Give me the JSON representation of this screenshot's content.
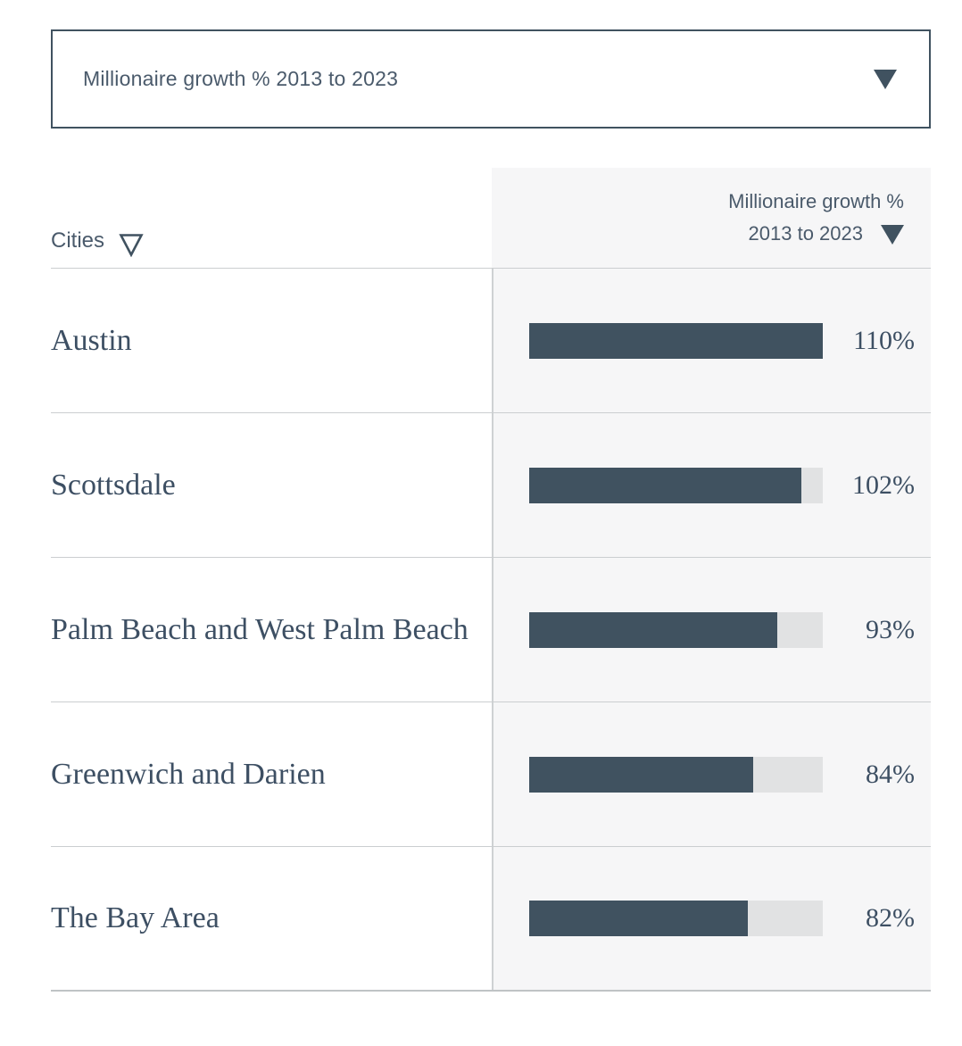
{
  "colors": {
    "bar_fill": "#405260",
    "bar_track": "#E1E2E3",
    "column_background": "#F6F6F7",
    "dropdown_border": "#405260",
    "serif_text": "#3D4F63",
    "sans_text": "#4A5A6B"
  },
  "dropdown": {
    "value": "Millionaire growth % 2013 to 2023",
    "icon": "triangle-down-filled"
  },
  "table": {
    "columns": [
      {
        "label": "Cities",
        "sort_icon": "triangle-down-outline"
      },
      {
        "label_line1": "Millionaire growth %",
        "label_line2": "2013 to 2023",
        "sort_icon": "triangle-down-filled"
      }
    ],
    "max_value": 110,
    "rows": [
      {
        "city": "Austin",
        "value": 110,
        "value_label": "110%"
      },
      {
        "city": "Scottsdale",
        "value": 102,
        "value_label": "102%"
      },
      {
        "city": "Palm Beach and West Palm Beach",
        "value": 93,
        "value_label": "93%"
      },
      {
        "city": "Greenwich and Darien",
        "value": 84,
        "value_label": "84%"
      },
      {
        "city": "The Bay Area",
        "value": 82,
        "value_label": "82%"
      }
    ]
  },
  "chart_data": {
    "type": "bar",
    "title": "Millionaire growth % 2013 to 2023",
    "categories": [
      "Austin",
      "Scottsdale",
      "Palm Beach and West Palm Beach",
      "Greenwich and Darien",
      "The Bay Area"
    ],
    "values": [
      110,
      102,
      93,
      84,
      82
    ],
    "value_labels": [
      "110%",
      "102%",
      "93%",
      "84%",
      "82%"
    ],
    "xlabel": "Cities",
    "ylabel": "Millionaire growth % 2013 to 2023",
    "xlim": [
      0,
      110
    ],
    "orientation": "horizontal",
    "grid": false,
    "legend": false
  }
}
